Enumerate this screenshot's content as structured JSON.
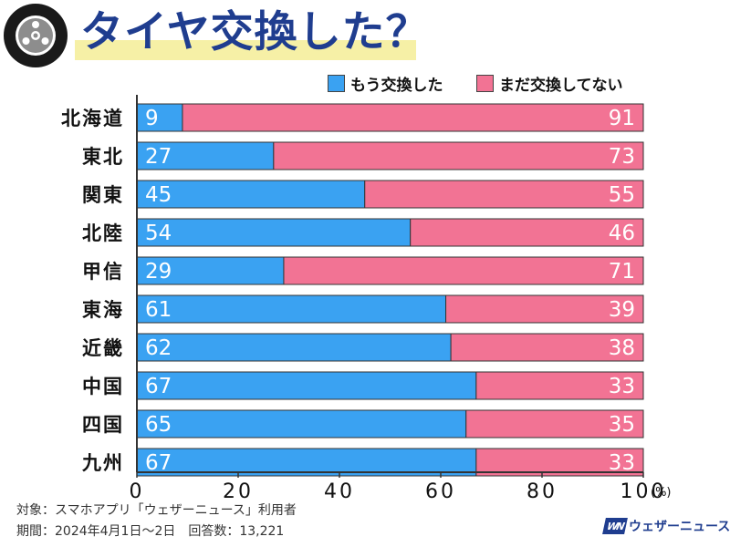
{
  "title": "タイヤ交換した？",
  "legend": [
    {
      "label": "もう交換した",
      "color": "#3aa2f2"
    },
    {
      "label": "まだ交換してない",
      "color": "#f27394"
    }
  ],
  "footnotes": {
    "target": "対象：スマホアプリ「ウェザーニュース」利用者",
    "period": "期間：2024年4月1日～2日　回答数：13,221"
  },
  "brand": {
    "mark": "WN",
    "name": "ウェザーニュース"
  },
  "chart_data": {
    "type": "bar",
    "orientation": "horizontal",
    "stacked": true,
    "title": "タイヤ交換した？",
    "categories": [
      "北海道",
      "東北",
      "関東",
      "北陸",
      "甲信",
      "東海",
      "近畿",
      "中国",
      "四国",
      "九州"
    ],
    "series": [
      {
        "name": "もう交換した",
        "color": "#3aa2f2",
        "values": [
          9,
          27,
          45,
          54,
          29,
          61,
          62,
          67,
          65,
          67
        ]
      },
      {
        "name": "まだ交換してない",
        "color": "#f27394",
        "values": [
          91,
          73,
          55,
          46,
          71,
          39,
          38,
          33,
          35,
          33
        ]
      }
    ],
    "xlim": [
      0,
      100
    ],
    "xticks": [
      "0",
      "20",
      "40",
      "60",
      "80",
      "100"
    ],
    "x_unit": "(%)",
    "legend_position": "top-right",
    "grid": false
  }
}
